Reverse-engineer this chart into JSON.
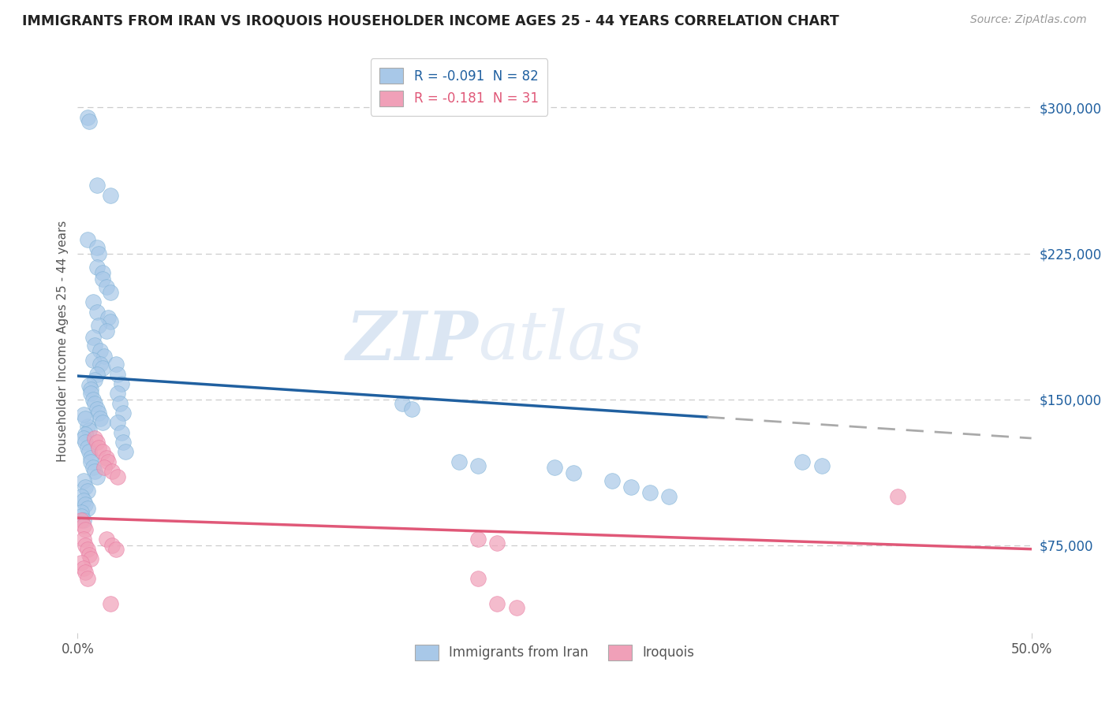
{
  "title": "IMMIGRANTS FROM IRAN VS IROQUOIS HOUSEHOLDER INCOME AGES 25 - 44 YEARS CORRELATION CHART",
  "source": "Source: ZipAtlas.com",
  "ylabel": "Householder Income Ages 25 - 44 years",
  "y_ticks": [
    75000,
    150000,
    225000,
    300000
  ],
  "y_tick_labels": [
    "$75,000",
    "$150,000",
    "$225,000",
    "$300,000"
  ],
  "x_min": 0.0,
  "x_max": 0.5,
  "y_min": 30000,
  "y_max": 330000,
  "legend_top_labels": [
    "R = -0.091  N = 82",
    "R = -0.181  N = 31"
  ],
  "legend_bottom": [
    "Immigrants from Iran",
    "Iroquois"
  ],
  "watermark": "ZIPatlas",
  "blue_color": "#a8c8e8",
  "pink_color": "#f0a0b8",
  "blue_edge": "#7aafd4",
  "pink_edge": "#e878a0",
  "trendline_blue_color": "#2060a0",
  "trendline_blue_dashed_color": "#aaaaaa",
  "trendline_pink_color": "#e05878",
  "blue_scatter": [
    [
      0.005,
      295000
    ],
    [
      0.006,
      293000
    ],
    [
      0.01,
      260000
    ],
    [
      0.017,
      255000
    ],
    [
      0.005,
      232000
    ],
    [
      0.01,
      228000
    ],
    [
      0.011,
      225000
    ],
    [
      0.01,
      218000
    ],
    [
      0.013,
      215000
    ],
    [
      0.013,
      212000
    ],
    [
      0.015,
      208000
    ],
    [
      0.017,
      205000
    ],
    [
      0.008,
      200000
    ],
    [
      0.01,
      195000
    ],
    [
      0.016,
      192000
    ],
    [
      0.017,
      190000
    ],
    [
      0.011,
      188000
    ],
    [
      0.015,
      185000
    ],
    [
      0.008,
      182000
    ],
    [
      0.009,
      178000
    ],
    [
      0.012,
      175000
    ],
    [
      0.014,
      172000
    ],
    [
      0.008,
      170000
    ],
    [
      0.012,
      168000
    ],
    [
      0.013,
      166000
    ],
    [
      0.01,
      163000
    ],
    [
      0.009,
      160000
    ],
    [
      0.006,
      157000
    ],
    [
      0.007,
      155000
    ],
    [
      0.007,
      153000
    ],
    [
      0.008,
      150000
    ],
    [
      0.009,
      148000
    ],
    [
      0.01,
      145000
    ],
    [
      0.011,
      143000
    ],
    [
      0.012,
      140000
    ],
    [
      0.013,
      138000
    ],
    [
      0.005,
      136000
    ],
    [
      0.006,
      134000
    ],
    [
      0.004,
      132000
    ],
    [
      0.003,
      130000
    ],
    [
      0.004,
      128000
    ],
    [
      0.005,
      125000
    ],
    [
      0.006,
      123000
    ],
    [
      0.007,
      120000
    ],
    [
      0.007,
      118000
    ],
    [
      0.008,
      115000
    ],
    [
      0.009,
      113000
    ],
    [
      0.01,
      110000
    ],
    [
      0.003,
      108000
    ],
    [
      0.004,
      105000
    ],
    [
      0.005,
      103000
    ],
    [
      0.002,
      100000
    ],
    [
      0.003,
      98000
    ],
    [
      0.004,
      96000
    ],
    [
      0.005,
      94000
    ],
    [
      0.002,
      92000
    ],
    [
      0.002,
      90000
    ],
    [
      0.003,
      88000
    ],
    [
      0.003,
      142000
    ],
    [
      0.004,
      140000
    ],
    [
      0.02,
      168000
    ],
    [
      0.021,
      163000
    ],
    [
      0.023,
      158000
    ],
    [
      0.021,
      153000
    ],
    [
      0.022,
      148000
    ],
    [
      0.024,
      143000
    ],
    [
      0.021,
      138000
    ],
    [
      0.023,
      133000
    ],
    [
      0.024,
      128000
    ],
    [
      0.025,
      123000
    ],
    [
      0.17,
      148000
    ],
    [
      0.175,
      145000
    ],
    [
      0.2,
      118000
    ],
    [
      0.21,
      116000
    ],
    [
      0.25,
      115000
    ],
    [
      0.26,
      112000
    ],
    [
      0.28,
      108000
    ],
    [
      0.29,
      105000
    ],
    [
      0.3,
      102000
    ],
    [
      0.31,
      100000
    ],
    [
      0.38,
      118000
    ],
    [
      0.39,
      116000
    ]
  ],
  "pink_scatter": [
    [
      0.002,
      88000
    ],
    [
      0.003,
      85000
    ],
    [
      0.004,
      83000
    ],
    [
      0.003,
      78000
    ],
    [
      0.004,
      75000
    ],
    [
      0.005,
      73000
    ],
    [
      0.006,
      70000
    ],
    [
      0.007,
      68000
    ],
    [
      0.002,
      66000
    ],
    [
      0.003,
      63000
    ],
    [
      0.004,
      61000
    ],
    [
      0.005,
      58000
    ],
    [
      0.009,
      130000
    ],
    [
      0.01,
      128000
    ],
    [
      0.011,
      125000
    ],
    [
      0.013,
      123000
    ],
    [
      0.015,
      120000
    ],
    [
      0.016,
      118000
    ],
    [
      0.014,
      115000
    ],
    [
      0.018,
      113000
    ],
    [
      0.021,
      110000
    ],
    [
      0.015,
      78000
    ],
    [
      0.018,
      75000
    ],
    [
      0.02,
      73000
    ],
    [
      0.017,
      45000
    ],
    [
      0.22,
      45000
    ],
    [
      0.23,
      43000
    ],
    [
      0.21,
      78000
    ],
    [
      0.22,
      76000
    ],
    [
      0.43,
      100000
    ],
    [
      0.21,
      58000
    ]
  ],
  "blue_trendline": [
    [
      0.0,
      162000
    ],
    [
      0.33,
      149000
    ],
    [
      0.5,
      130000
    ]
  ],
  "pink_trendline": [
    [
      0.0,
      89000
    ],
    [
      0.5,
      73000
    ]
  ]
}
